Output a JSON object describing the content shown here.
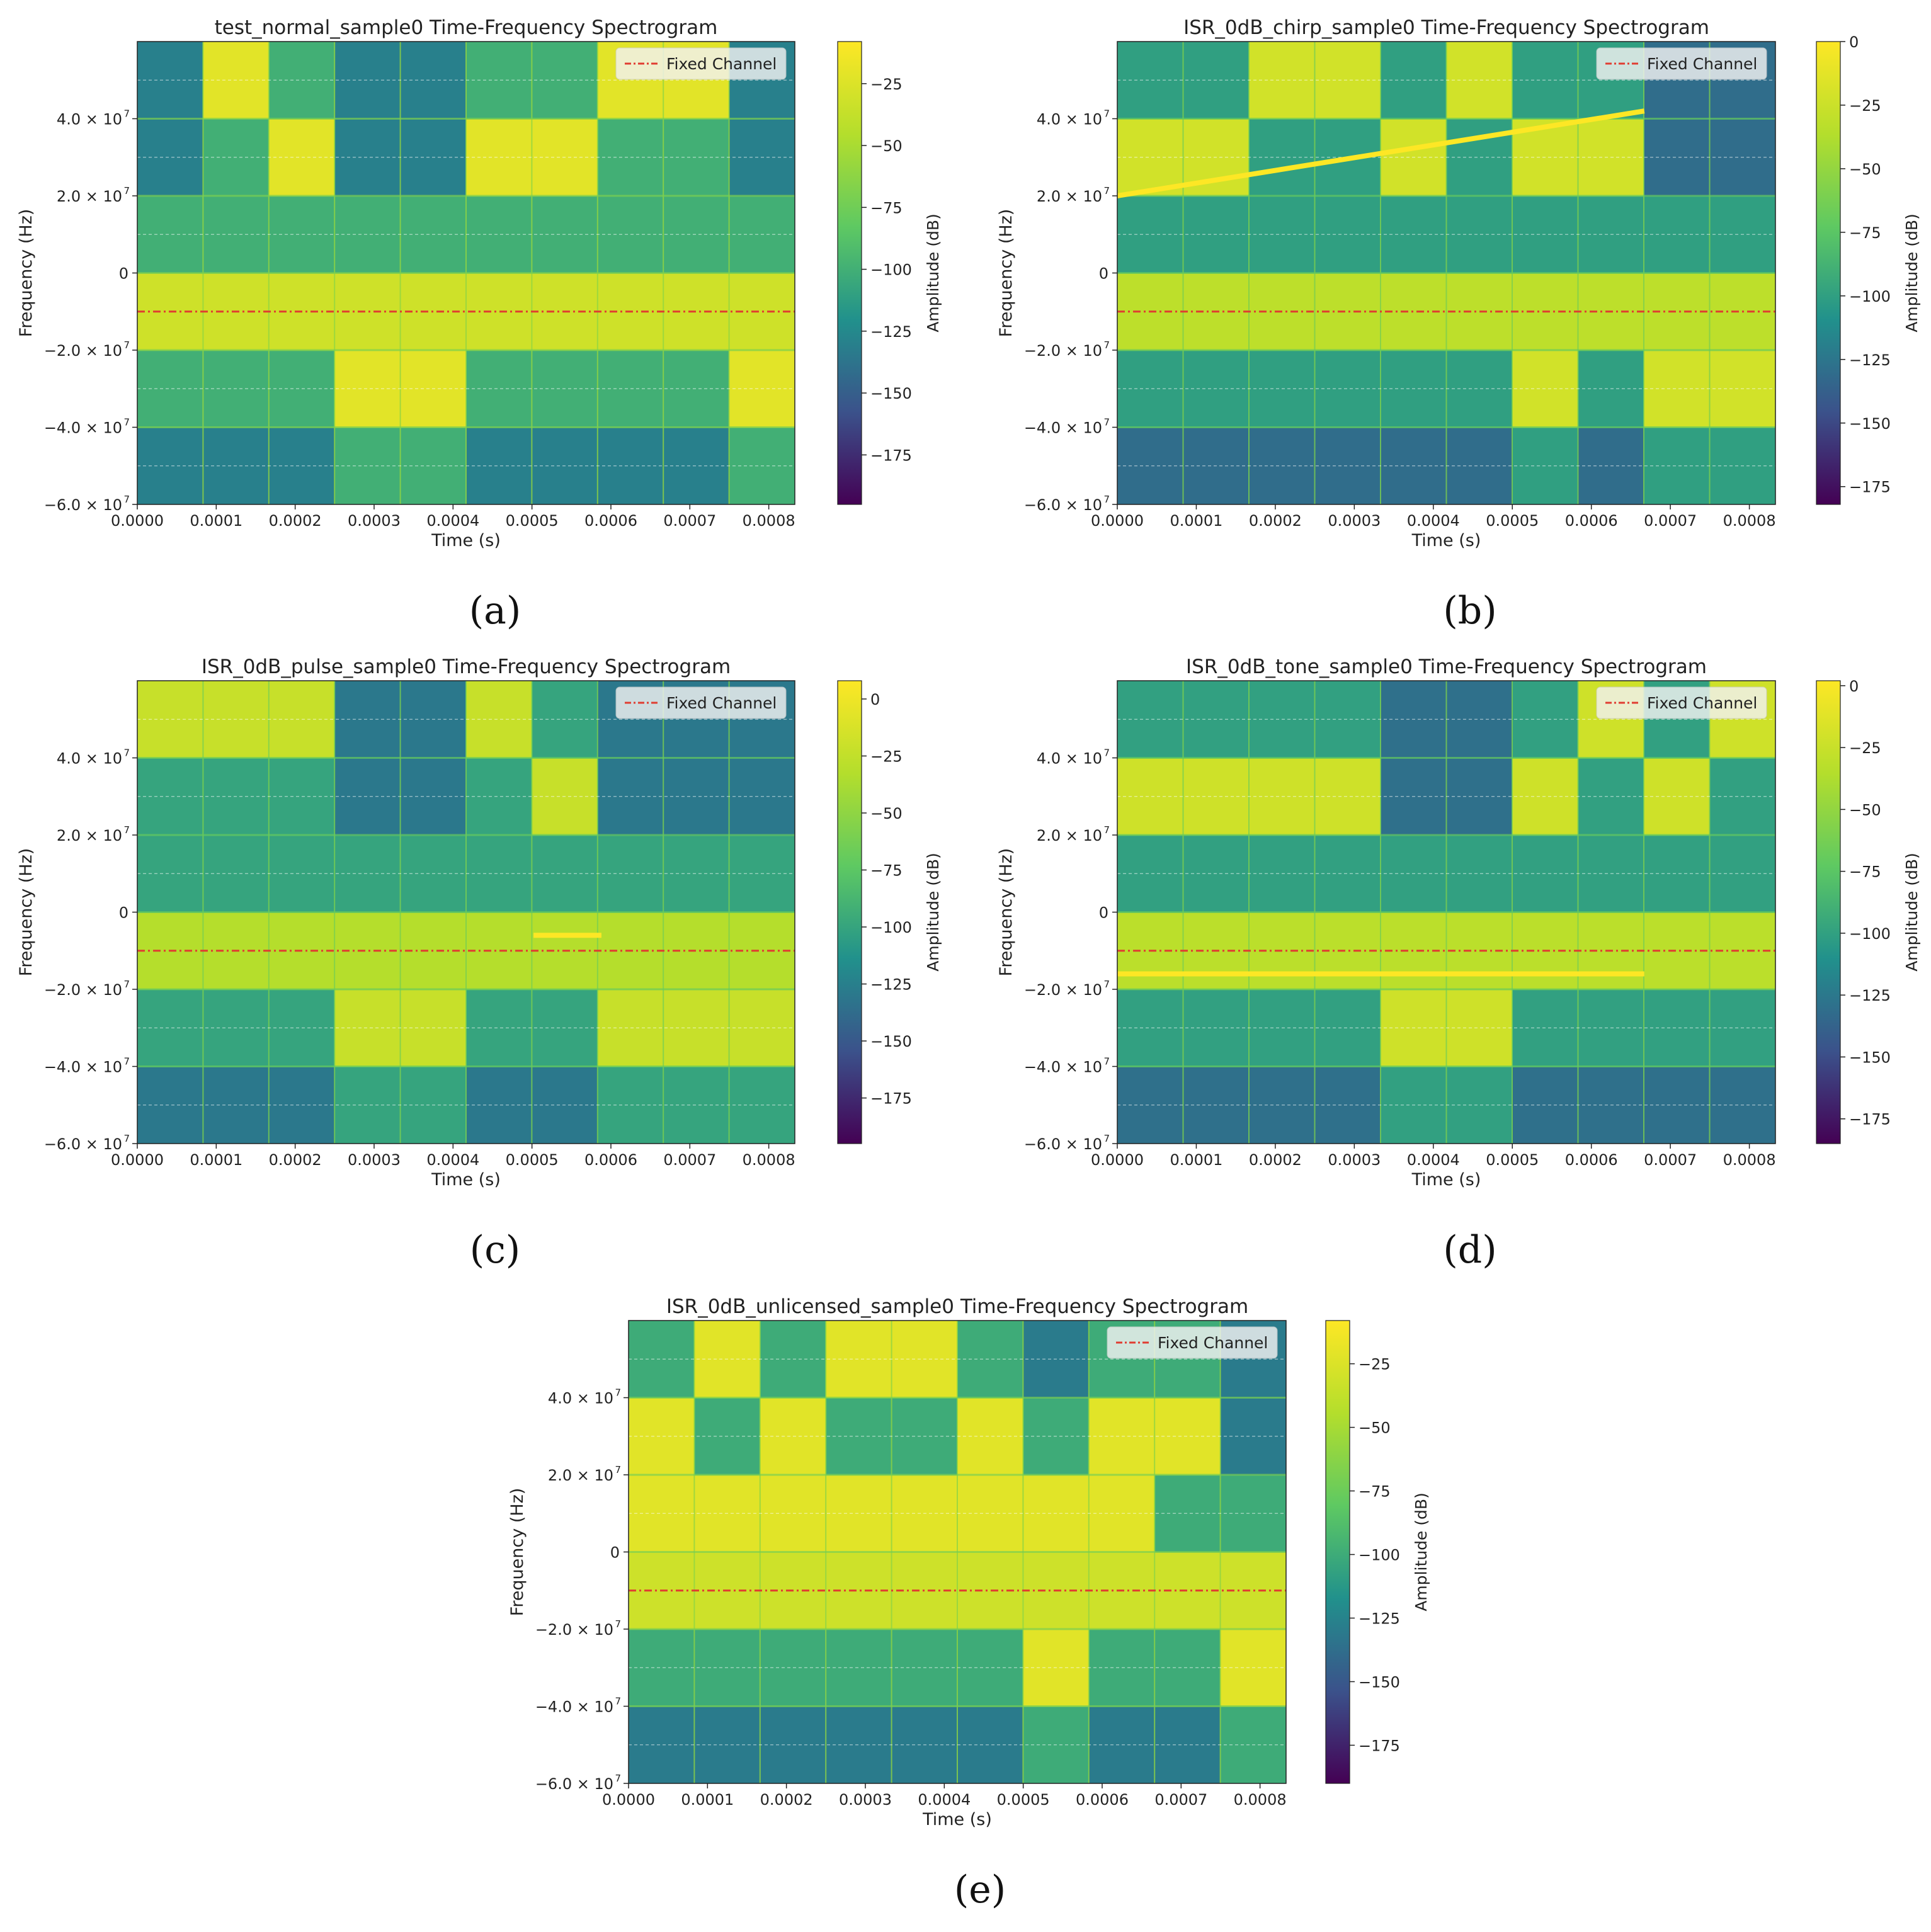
{
  "colormap": {
    "name": "viridis",
    "stops": [
      "#440154",
      "#3b528b",
      "#21918c",
      "#5ec962",
      "#b4de2c",
      "#fde725"
    ]
  },
  "colors": {
    "fixed_channel": "#e03c31",
    "interference": "#fde725",
    "grid": "#ffffff"
  },
  "chart_data": [
    {
      "type": "heatmap",
      "panel": "(a)",
      "title": "test_normal_sample0 Time-Frequency Spectrogram",
      "xlabel": "Time (s)",
      "ylabel": "Frequency (Hz)",
      "colorbar_label": "Amplitude (dB)",
      "xlim": [
        0,
        0.000833
      ],
      "ylim": [
        -60000000,
        60000000
      ],
      "clim": [
        -195,
        -8
      ],
      "xticks": [
        "0.0000",
        "0.0001",
        "0.0002",
        "0.0003",
        "0.0004",
        "0.0005",
        "0.0006",
        "0.0007",
        "0.0008"
      ],
      "yticks": [
        "−6.0 × 10",
        "−4.0 × 10",
        "−2.0 × 10",
        "0",
        "2.0 × 10",
        "4.0 × 10"
      ],
      "ytick_exponent": "7",
      "cbar_ticks": [
        -25,
        -50,
        -75,
        -100,
        -125,
        -150,
        -175
      ],
      "cbar_tick_labels": [
        "−25",
        "−50",
        "−75",
        "−100",
        "−125",
        "−150",
        "−175"
      ],
      "legend": {
        "label": "Fixed Channel",
        "position": "upper right"
      },
      "fixed_channel_hz": -10000000,
      "segment_s": 8.33e-05,
      "band_edges_hz": [
        -60000000,
        -40000000,
        -20000000,
        0,
        20000000,
        40000000,
        60000000
      ],
      "occupancy": [
        [
          0,
          0,
          1,
          0,
          0,
          0
        ],
        [
          0,
          0,
          1,
          0,
          0,
          1
        ],
        [
          0,
          0,
          1,
          0,
          1,
          0
        ],
        [
          0,
          1,
          1,
          0,
          0,
          0
        ],
        [
          0,
          1,
          1,
          0,
          0,
          0
        ],
        [
          0,
          0,
          1,
          0,
          1,
          0
        ],
        [
          0,
          0,
          1,
          0,
          1,
          0
        ],
        [
          0,
          0,
          1,
          0,
          0,
          1
        ],
        [
          0,
          0,
          1,
          0,
          0,
          1
        ],
        [
          0,
          1,
          1,
          0,
          0,
          0
        ]
      ],
      "interference": null
    },
    {
      "type": "heatmap",
      "panel": "(b)",
      "title": "ISR_0dB_chirp_sample0 Time-Frequency Spectrogram",
      "xlabel": "Time (s)",
      "ylabel": "Frequency (Hz)",
      "colorbar_label": "Amplitude (dB)",
      "xlim": [
        0,
        0.000833
      ],
      "ylim": [
        -60000000,
        60000000
      ],
      "clim": [
        -182,
        0
      ],
      "xticks": [
        "0.0000",
        "0.0001",
        "0.0002",
        "0.0003",
        "0.0004",
        "0.0005",
        "0.0006",
        "0.0007",
        "0.0008"
      ],
      "yticks": [
        "−6.0 × 10",
        "−4.0 × 10",
        "−2.0 × 10",
        "0",
        "2.0 × 10",
        "4.0 × 10"
      ],
      "ytick_exponent": "7",
      "cbar_ticks": [
        0,
        -25,
        -50,
        -75,
        -100,
        -125,
        -150,
        -175
      ],
      "cbar_tick_labels": [
        "0",
        "−25",
        "−50",
        "−75",
        "−100",
        "−125",
        "−150",
        "−175"
      ],
      "legend": {
        "label": "Fixed Channel",
        "position": "upper right"
      },
      "fixed_channel_hz": -10000000,
      "segment_s": 8.33e-05,
      "band_edges_hz": [
        -60000000,
        -40000000,
        -20000000,
        0,
        20000000,
        40000000,
        60000000
      ],
      "occupancy": [
        [
          0,
          0,
          1,
          0,
          1,
          0
        ],
        [
          0,
          0,
          1,
          0,
          1,
          0
        ],
        [
          0,
          0,
          1,
          0,
          0,
          1
        ],
        [
          0,
          0,
          1,
          0,
          0,
          1
        ],
        [
          0,
          0,
          1,
          0,
          1,
          0
        ],
        [
          0,
          0,
          1,
          0,
          0,
          1
        ],
        [
          0,
          1,
          1,
          0,
          1,
          0
        ],
        [
          0,
          0,
          1,
          0,
          1,
          0
        ],
        [
          0,
          1,
          1,
          0,
          0,
          0
        ],
        [
          0,
          1,
          1,
          0,
          0,
          0
        ]
      ],
      "interference": {
        "kind": "chirp",
        "t_start": 0,
        "t_end": 0.000667,
        "f_start_hz": 20000000,
        "f_end_hz": 42000000
      }
    },
    {
      "type": "heatmap",
      "panel": "(c)",
      "title": "ISR_0dB_pulse_sample0 Time-Frequency Spectrogram",
      "xlabel": "Time (s)",
      "ylabel": "Frequency (Hz)",
      "colorbar_label": "Amplitude (dB)",
      "xlim": [
        0,
        0.000833
      ],
      "ylim": [
        -60000000,
        60000000
      ],
      "clim": [
        -195,
        8
      ],
      "xticks": [
        "0.0000",
        "0.0001",
        "0.0002",
        "0.0003",
        "0.0004",
        "0.0005",
        "0.0006",
        "0.0007",
        "0.0008"
      ],
      "yticks": [
        "−6.0 × 10",
        "−4.0 × 10",
        "−2.0 × 10",
        "0",
        "2.0 × 10",
        "4.0 × 10"
      ],
      "ytick_exponent": "7",
      "cbar_ticks": [
        0,
        -25,
        -50,
        -75,
        -100,
        -125,
        -150,
        -175
      ],
      "cbar_tick_labels": [
        "0",
        "−25",
        "−50",
        "−75",
        "−100",
        "−125",
        "−150",
        "−175"
      ],
      "legend": {
        "label": "Fixed Channel",
        "position": "upper right"
      },
      "fixed_channel_hz": -10000000,
      "segment_s": 8.33e-05,
      "band_edges_hz": [
        -60000000,
        -40000000,
        -20000000,
        0,
        20000000,
        40000000,
        60000000
      ],
      "occupancy": [
        [
          0,
          0,
          1,
          0,
          0,
          1
        ],
        [
          0,
          0,
          1,
          0,
          0,
          1
        ],
        [
          0,
          0,
          1,
          0,
          0,
          1
        ],
        [
          0,
          1,
          1,
          0,
          0,
          0
        ],
        [
          0,
          1,
          1,
          0,
          0,
          0
        ],
        [
          0,
          0,
          1,
          0,
          0,
          1
        ],
        [
          0,
          0,
          1,
          0,
          1,
          0
        ],
        [
          0,
          1,
          1,
          0,
          0,
          0
        ],
        [
          0,
          1,
          1,
          0,
          0,
          0
        ],
        [
          0,
          1,
          1,
          0,
          0,
          0
        ]
      ],
      "interference": {
        "kind": "pulse",
        "t_start": 0.000502,
        "t_end": 0.000588,
        "f_hz": -6000000
      }
    },
    {
      "type": "heatmap",
      "panel": "(d)",
      "title": "ISR_0dB_tone_sample0 Time-Frequency Spectrogram",
      "xlabel": "Time (s)",
      "ylabel": "Frequency (Hz)",
      "colorbar_label": "Amplitude (dB)",
      "xlim": [
        0,
        0.000833
      ],
      "ylim": [
        -60000000,
        60000000
      ],
      "clim": [
        -185,
        2
      ],
      "xticks": [
        "0.0000",
        "0.0001",
        "0.0002",
        "0.0003",
        "0.0004",
        "0.0005",
        "0.0006",
        "0.0007",
        "0.0008"
      ],
      "yticks": [
        "−6.0 × 10",
        "−4.0 × 10",
        "−2.0 × 10",
        "0",
        "2.0 × 10",
        "4.0 × 10"
      ],
      "ytick_exponent": "7",
      "cbar_ticks": [
        0,
        -25,
        -50,
        -75,
        -100,
        -125,
        -150,
        -175
      ],
      "cbar_tick_labels": [
        "0",
        "−25",
        "−50",
        "−75",
        "−100",
        "−125",
        "−150",
        "−175"
      ],
      "legend": {
        "label": "Fixed Channel",
        "position": "upper right"
      },
      "fixed_channel_hz": -10000000,
      "segment_s": 8.33e-05,
      "band_edges_hz": [
        -60000000,
        -40000000,
        -20000000,
        0,
        20000000,
        40000000,
        60000000
      ],
      "occupancy": [
        [
          0,
          0,
          1,
          0,
          1,
          0
        ],
        [
          0,
          0,
          1,
          0,
          1,
          0
        ],
        [
          0,
          0,
          1,
          0,
          1,
          0
        ],
        [
          0,
          0,
          1,
          0,
          1,
          0
        ],
        [
          0,
          1,
          1,
          0,
          0,
          0
        ],
        [
          0,
          1,
          1,
          0,
          0,
          0
        ],
        [
          0,
          0,
          1,
          0,
          1,
          0
        ],
        [
          0,
          0,
          1,
          0,
          0,
          1
        ],
        [
          0,
          0,
          1,
          0,
          1,
          0
        ],
        [
          0,
          0,
          1,
          0,
          0,
          1
        ]
      ],
      "interference": {
        "kind": "tone",
        "t_start": 0,
        "t_end": 0.000667,
        "f_hz": -16000000
      }
    },
    {
      "type": "heatmap",
      "panel": "(e)",
      "title": "ISR_0dB_unlicensed_sample0 Time-Frequency Spectrogram",
      "xlabel": "Time (s)",
      "ylabel": "Frequency (Hz)",
      "colorbar_label": "Amplitude (dB)",
      "xlim": [
        0,
        0.000833
      ],
      "ylim": [
        -60000000,
        60000000
      ],
      "clim": [
        -190,
        -8
      ],
      "xticks": [
        "0.0000",
        "0.0001",
        "0.0002",
        "0.0003",
        "0.0004",
        "0.0005",
        "0.0006",
        "0.0007",
        "0.0008"
      ],
      "yticks": [
        "−6.0 × 10",
        "−4.0 × 10",
        "−2.0 × 10",
        "0",
        "2.0 × 10",
        "4.0 × 10"
      ],
      "ytick_exponent": "7",
      "cbar_ticks": [
        -25,
        -50,
        -75,
        -100,
        -125,
        -150,
        -175
      ],
      "cbar_tick_labels": [
        "−25",
        "−50",
        "−75",
        "−100",
        "−125",
        "−150",
        "−175"
      ],
      "legend": {
        "label": "Fixed Channel",
        "position": "upper right"
      },
      "fixed_channel_hz": -10000000,
      "segment_s": 8.33e-05,
      "band_edges_hz": [
        -60000000,
        -40000000,
        -20000000,
        0,
        20000000,
        40000000,
        60000000
      ],
      "occupancy": [
        [
          0,
          0,
          1,
          1,
          1,
          0
        ],
        [
          0,
          0,
          1,
          1,
          0,
          1
        ],
        [
          0,
          0,
          1,
          1,
          1,
          0
        ],
        [
          0,
          0,
          1,
          1,
          0,
          1
        ],
        [
          0,
          0,
          1,
          1,
          0,
          1
        ],
        [
          0,
          0,
          1,
          1,
          1,
          0
        ],
        [
          0,
          1,
          1,
          1,
          0,
          0
        ],
        [
          0,
          0,
          1,
          1,
          1,
          0
        ],
        [
          0,
          0,
          1,
          0,
          1,
          0
        ],
        [
          0,
          1,
          1,
          0,
          0,
          0
        ]
      ],
      "interference": null
    }
  ],
  "captions": [
    "(a)",
    "(b)",
    "(c)",
    "(d)",
    "(e)"
  ]
}
